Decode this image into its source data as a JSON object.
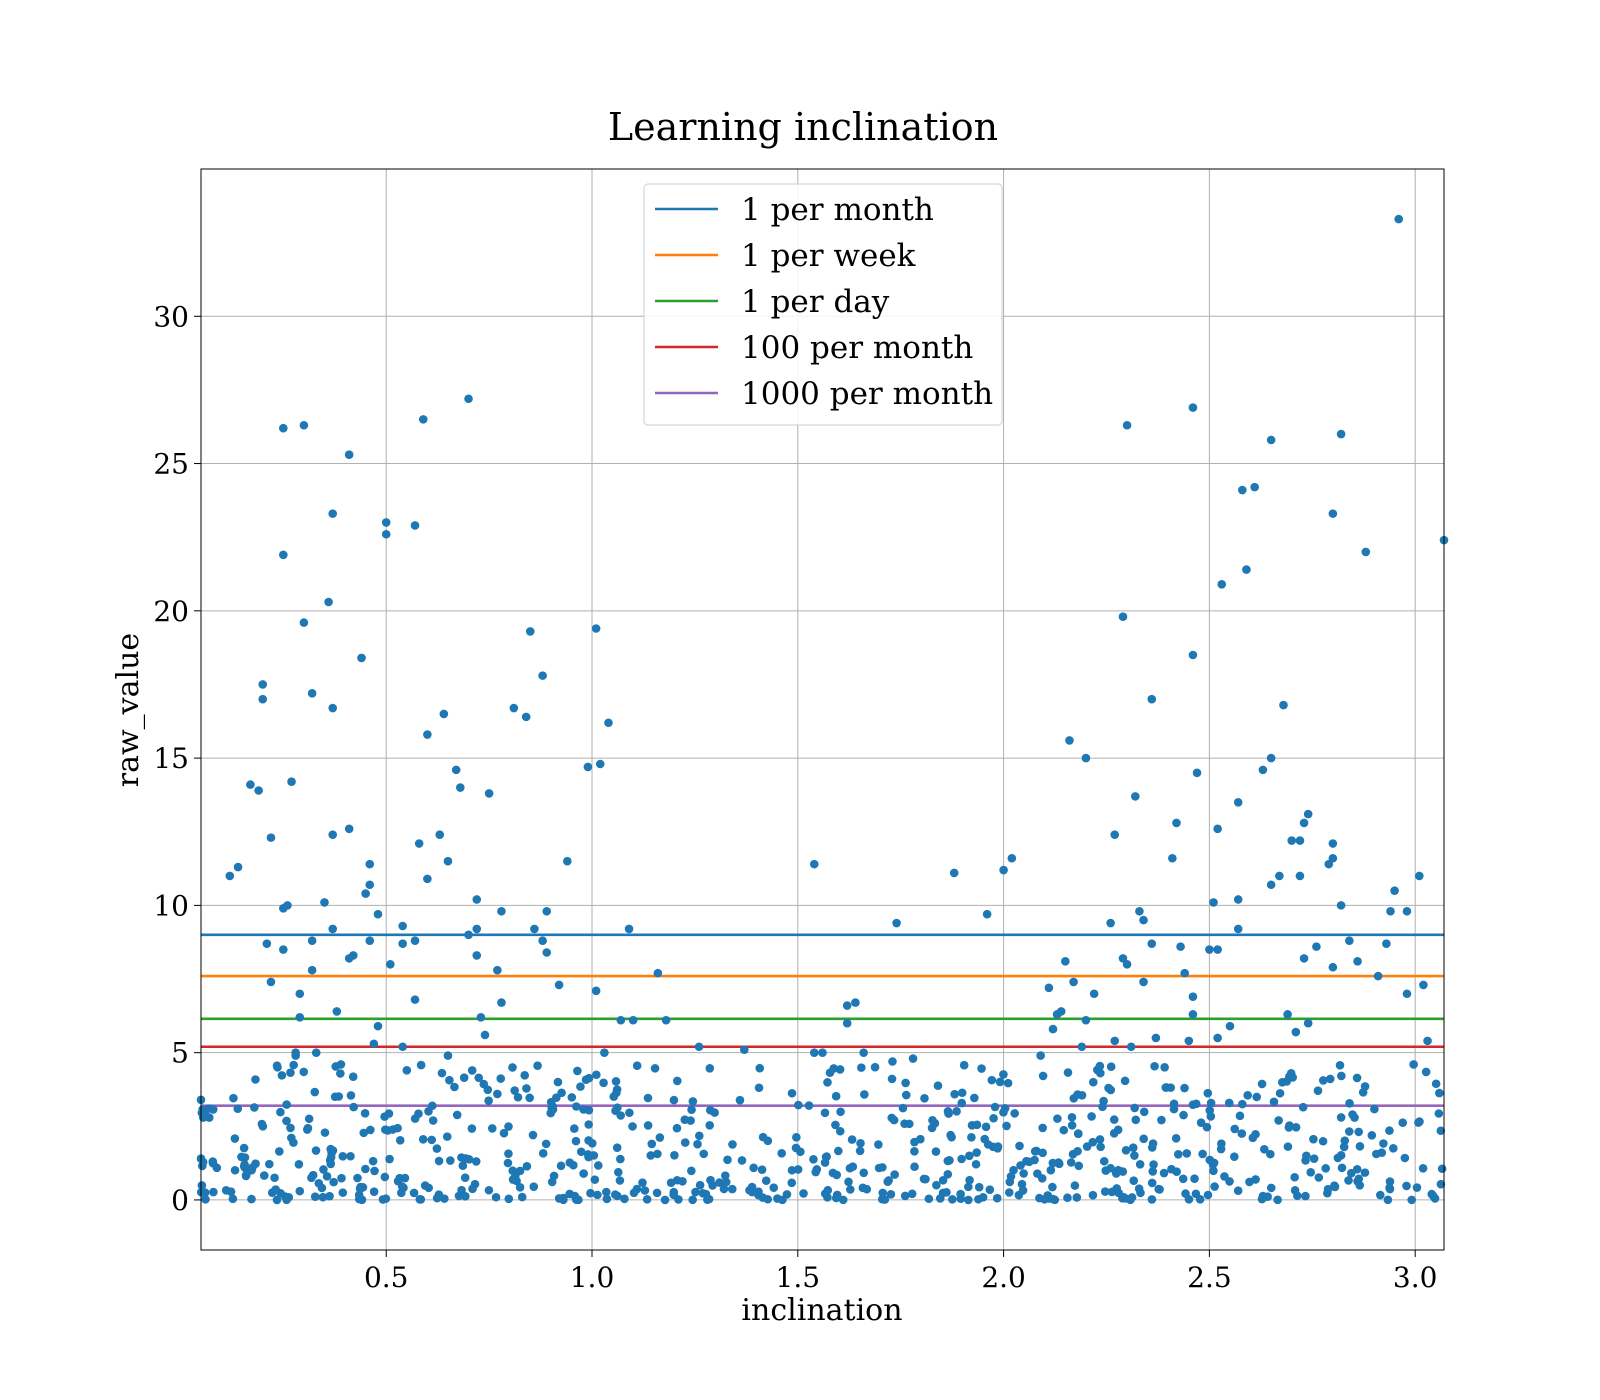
{
  "chart_data": {
    "type": "scatter",
    "title": "Learning inclination",
    "xlabel": "inclination",
    "ylabel": "raw_value",
    "xlim": [
      0.05,
      3.07
    ],
    "ylim": [
      -1.7,
      35
    ],
    "xticks": [
      0.5,
      1.0,
      1.5,
      2.0,
      2.5,
      3.0
    ],
    "xtick_labels": [
      "0.5",
      "1.0",
      "1.5",
      "2.0",
      "2.5",
      "3.0"
    ],
    "yticks": [
      0,
      5,
      10,
      15,
      20,
      25,
      30
    ],
    "ytick_labels": [
      "0",
      "5",
      "10",
      "15",
      "20",
      "25",
      "30"
    ],
    "grid": true,
    "legend_position": "top-center",
    "scatter_color": "#1f77b4",
    "reference_lines": [
      {
        "name": "1 per month",
        "y": 9.0,
        "color": "#1f77b4"
      },
      {
        "name": "1 per week",
        "y": 7.6,
        "color": "#ff7f0e"
      },
      {
        "name": "1 per day",
        "y": 6.15,
        "color": "#2ca02c"
      },
      {
        "name": "100 per month",
        "y": 5.2,
        "color": "#d62728"
      },
      {
        "name": "1000 per month",
        "y": 3.2,
        "color": "#9467bd"
      }
    ],
    "points": [
      [
        0.05,
        3.4
      ],
      [
        0.06,
        0.25
      ],
      [
        0.07,
        3.1
      ],
      [
        0.12,
        11.0
      ],
      [
        0.14,
        11.3
      ],
      [
        0.17,
        14.1
      ],
      [
        0.19,
        13.9
      ],
      [
        0.2,
        17.0
      ],
      [
        0.2,
        17.5
      ],
      [
        0.21,
        8.7
      ],
      [
        0.22,
        12.3
      ],
      [
        0.22,
        7.4
      ],
      [
        0.25,
        8.5
      ],
      [
        0.25,
        21.9
      ],
      [
        0.25,
        26.2
      ],
      [
        0.26,
        10.0
      ],
      [
        0.25,
        9.9
      ],
      [
        0.27,
        14.2
      ],
      [
        0.28,
        5.0
      ],
      [
        0.29,
        7.0
      ],
      [
        0.29,
        6.2
      ],
      [
        0.3,
        26.3
      ],
      [
        0.3,
        19.6
      ],
      [
        0.32,
        17.2
      ],
      [
        0.32,
        8.8
      ],
      [
        0.32,
        7.8
      ],
      [
        0.33,
        5.0
      ],
      [
        0.35,
        10.1
      ],
      [
        0.36,
        20.3
      ],
      [
        0.37,
        23.3
      ],
      [
        0.37,
        16.7
      ],
      [
        0.37,
        12.4
      ],
      [
        0.37,
        9.2
      ],
      [
        0.38,
        6.4
      ],
      [
        0.41,
        12.6
      ],
      [
        0.41,
        25.3
      ],
      [
        0.42,
        8.3
      ],
      [
        0.41,
        8.2
      ],
      [
        0.44,
        18.4
      ],
      [
        0.45,
        10.4
      ],
      [
        0.46,
        11.4
      ],
      [
        0.46,
        10.7
      ],
      [
        0.46,
        8.8
      ],
      [
        0.48,
        9.7
      ],
      [
        0.5,
        23.0
      ],
      [
        0.5,
        22.6
      ],
      [
        0.48,
        5.9
      ],
      [
        0.51,
        8.0
      ],
      [
        0.54,
        9.3
      ],
      [
        0.54,
        8.7
      ],
      [
        0.54,
        5.2
      ],
      [
        0.57,
        22.9
      ],
      [
        0.58,
        12.1
      ],
      [
        0.59,
        26.5
      ],
      [
        0.6,
        15.8
      ],
      [
        0.6,
        10.9
      ],
      [
        0.57,
        6.8
      ],
      [
        0.57,
        8.8
      ],
      [
        0.63,
        12.4
      ],
      [
        0.64,
        16.5
      ],
      [
        0.65,
        11.5
      ],
      [
        0.67,
        14.6
      ],
      [
        0.68,
        14.0
      ],
      [
        0.7,
        27.2
      ],
      [
        0.7,
        9.0
      ],
      [
        0.72,
        10.2
      ],
      [
        0.72,
        9.2
      ],
      [
        0.72,
        8.3
      ],
      [
        0.73,
        6.2
      ],
      [
        0.75,
        13.8
      ],
      [
        0.74,
        5.6
      ],
      [
        0.77,
        7.8
      ],
      [
        0.78,
        9.8
      ],
      [
        0.78,
        6.7
      ],
      [
        0.81,
        16.7
      ],
      [
        0.84,
        16.4
      ],
      [
        0.85,
        19.3
      ],
      [
        0.86,
        9.2
      ],
      [
        0.88,
        17.8
      ],
      [
        0.88,
        8.8
      ],
      [
        0.89,
        9.8
      ],
      [
        0.89,
        8.4
      ],
      [
        0.92,
        7.3
      ],
      [
        0.94,
        11.5
      ],
      [
        0.99,
        14.7
      ],
      [
        1.01,
        19.4
      ],
      [
        1.02,
        14.8
      ],
      [
        1.04,
        16.2
      ],
      [
        1.01,
        7.1
      ],
      [
        1.03,
        5.0
      ],
      [
        1.09,
        9.2
      ],
      [
        1.1,
        6.1
      ],
      [
        1.07,
        6.1
      ],
      [
        1.16,
        7.7
      ],
      [
        1.18,
        6.1
      ],
      [
        1.54,
        11.4
      ],
      [
        1.62,
        6.6
      ],
      [
        1.64,
        6.7
      ],
      [
        1.62,
        6.0
      ],
      [
        1.74,
        9.4
      ],
      [
        1.88,
        11.1
      ],
      [
        1.96,
        9.7
      ],
      [
        2.0,
        11.2
      ],
      [
        2.02,
        11.6
      ],
      [
        2.11,
        7.2
      ],
      [
        2.14,
        6.4
      ],
      [
        2.15,
        8.1
      ],
      [
        2.16,
        15.6
      ],
      [
        2.17,
        7.4
      ],
      [
        2.2,
        15.0
      ],
      [
        2.2,
        6.1
      ],
      [
        2.22,
        7.0
      ],
      [
        2.27,
        12.4
      ],
      [
        2.26,
        9.4
      ],
      [
        2.29,
        19.8
      ],
      [
        2.3,
        26.3
      ],
      [
        2.29,
        8.2
      ],
      [
        2.3,
        8.0
      ],
      [
        2.32,
        13.7
      ],
      [
        2.33,
        9.8
      ],
      [
        2.34,
        9.5
      ],
      [
        2.34,
        7.4
      ],
      [
        2.36,
        17.0
      ],
      [
        2.36,
        8.7
      ],
      [
        2.41,
        11.6
      ],
      [
        2.42,
        12.8
      ],
      [
        2.43,
        8.6
      ],
      [
        2.44,
        7.7
      ],
      [
        2.46,
        26.9
      ],
      [
        2.46,
        18.5
      ],
      [
        2.47,
        14.5
      ],
      [
        2.46,
        6.9
      ],
      [
        2.46,
        6.3
      ],
      [
        2.5,
        8.5
      ],
      [
        2.51,
        10.1
      ],
      [
        2.52,
        12.6
      ],
      [
        2.52,
        8.5
      ],
      [
        2.53,
        20.9
      ],
      [
        2.57,
        13.5
      ],
      [
        2.57,
        10.2
      ],
      [
        2.57,
        9.2
      ],
      [
        2.58,
        24.1
      ],
      [
        2.59,
        21.4
      ],
      [
        2.61,
        24.2
      ],
      [
        2.63,
        14.6
      ],
      [
        2.65,
        25.8
      ],
      [
        2.65,
        15.0
      ],
      [
        2.65,
        10.7
      ],
      [
        2.67,
        11.0
      ],
      [
        2.68,
        16.8
      ],
      [
        2.7,
        12.2
      ],
      [
        2.72,
        12.2
      ],
      [
        2.72,
        11.0
      ],
      [
        2.73,
        12.8
      ],
      [
        2.74,
        13.1
      ],
      [
        2.73,
        8.2
      ],
      [
        2.76,
        8.6
      ],
      [
        2.79,
        11.4
      ],
      [
        2.8,
        11.6
      ],
      [
        2.8,
        12.1
      ],
      [
        2.8,
        23.3
      ],
      [
        2.82,
        26.0
      ],
      [
        2.8,
        7.9
      ],
      [
        2.82,
        10.0
      ],
      [
        2.84,
        8.8
      ],
      [
        2.86,
        8.1
      ],
      [
        2.88,
        22.0
      ],
      [
        2.91,
        7.6
      ],
      [
        2.93,
        8.7
      ],
      [
        2.94,
        9.8
      ],
      [
        2.95,
        10.5
      ],
      [
        2.96,
        33.3
      ],
      [
        2.98,
        9.8
      ],
      [
        2.98,
        7.0
      ],
      [
        3.01,
        11.0
      ],
      [
        3.02,
        7.3
      ],
      [
        3.03,
        5.4
      ],
      [
        3.07,
        22.4
      ],
      [
        2.74,
        6.0
      ],
      [
        2.69,
        6.3
      ],
      [
        2.71,
        5.7
      ],
      [
        2.55,
        5.9
      ],
      [
        2.52,
        5.5
      ],
      [
        2.45,
        5.4
      ],
      [
        2.37,
        5.5
      ],
      [
        2.31,
        5.2
      ],
      [
        2.27,
        5.4
      ],
      [
        2.19,
        5.2
      ],
      [
        2.09,
        4.9
      ],
      [
        2.12,
        5.8
      ],
      [
        2.13,
        6.3
      ],
      [
        1.66,
        5.0
      ],
      [
        1.73,
        4.7
      ],
      [
        1.78,
        4.8
      ],
      [
        1.54,
        5.0
      ],
      [
        1.56,
        5.0
      ],
      [
        1.26,
        5.2
      ],
      [
        1.37,
        5.1
      ],
      [
        0.65,
        4.9
      ],
      [
        0.55,
        4.4
      ],
      [
        0.47,
        5.3
      ],
      [
        0.39,
        4.6
      ],
      [
        0.28,
        4.9
      ]
    ],
    "dense_band": {
      "x_range": [
        0.05,
        3.07
      ],
      "y_range": [
        0.0,
        4.6
      ],
      "count": 720,
      "seed": 7
    }
  }
}
